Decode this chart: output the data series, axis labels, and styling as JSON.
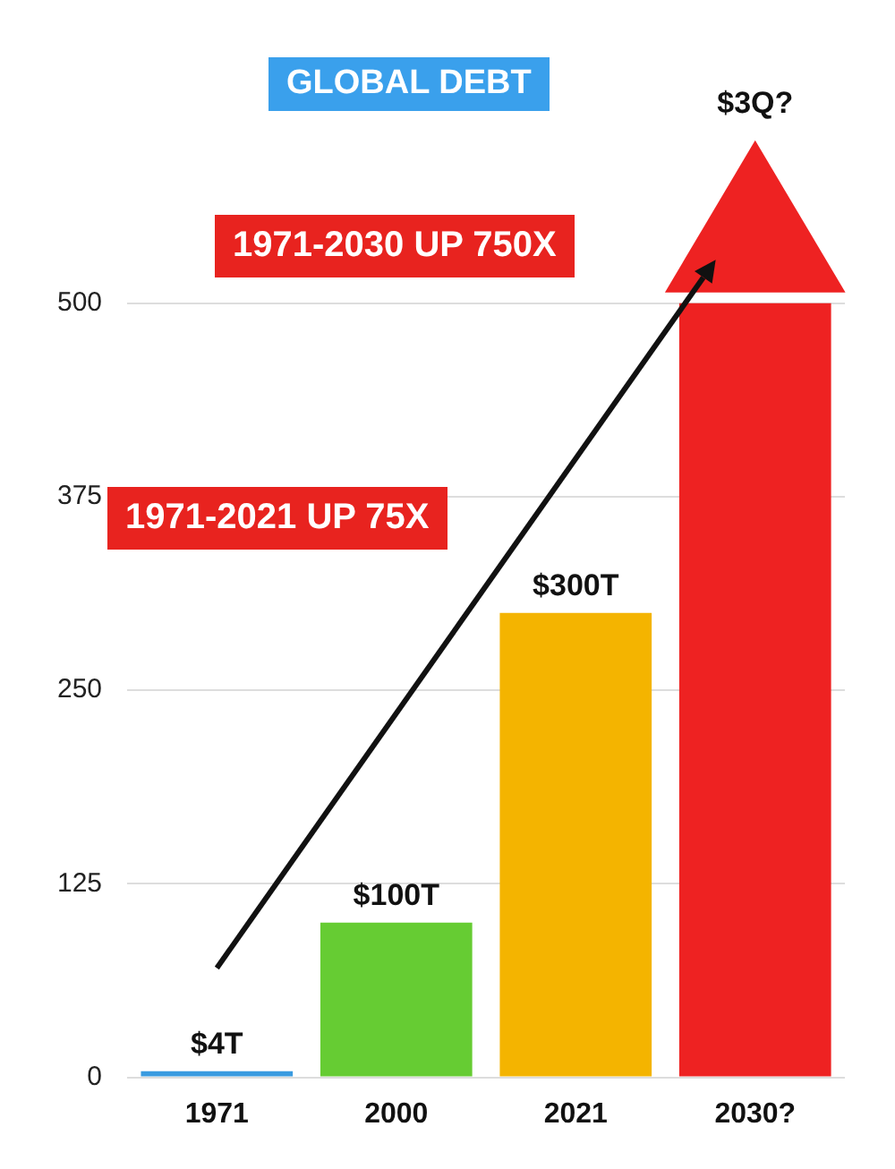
{
  "chart_data": {
    "type": "bar",
    "title": "GLOBAL DEBT",
    "categories": [
      "1971",
      "2000",
      "2021",
      "2030?"
    ],
    "values": [
      4,
      100,
      300,
      500
    ],
    "colors": [
      "#3a9be0",
      "#66cc33",
      "#f4b400",
      "#ee2222"
    ],
    "value_labels": [
      "$4T",
      "$100T",
      "$300T",
      null
    ],
    "annotations": [
      "1971-2030 UP 750X",
      "1971-2021 UP 75X",
      "$3Q?"
    ],
    "ylim": [
      0,
      660
    ],
    "yticks": [
      0,
      125,
      250,
      375,
      500
    ],
    "grid": "y",
    "legend": false
  }
}
